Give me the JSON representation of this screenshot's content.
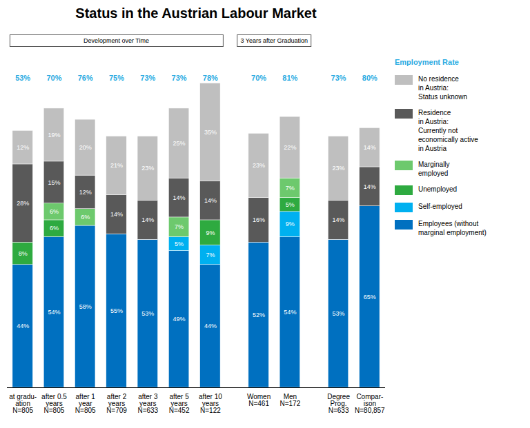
{
  "chart_data": {
    "type": "bar",
    "stacked": true,
    "title": "Status in the Austrian Labour Market",
    "categories": [
      "at gradu-\nation\nN=805",
      "after 0.5\nyears\nN=805",
      "after 1\nyear\nN=805",
      "after 2\nyears\nN=709",
      "after 3\nyears\nN=633",
      "after 5\nyears\nN=452",
      "after 10\nyears\nN=122",
      "Women\nN=461",
      "Men\nN=172",
      "Degree\nProg.\nN=633",
      "Compar-\nison\nN=80,857"
    ],
    "series": [
      {
        "name": "Employees (without\nmarginal employment)",
        "color": "#0070C0",
        "values": [
          44,
          54,
          58,
          55,
          53,
          49,
          44,
          52,
          54,
          53,
          65
        ],
        "value_labels": [
          "44%",
          "54%",
          "58%",
          "55%",
          "53%",
          "49%",
          "44%",
          "52%",
          "54%",
          "53%",
          "65%"
        ]
      },
      {
        "name": "Self-employed",
        "color": "#00B0F0",
        "values": [
          0,
          0,
          0,
          0,
          0,
          5,
          7,
          0,
          9,
          0,
          0
        ],
        "value_labels": [
          null,
          null,
          null,
          null,
          null,
          "5%",
          "7%",
          null,
          "9%",
          null,
          null
        ]
      },
      {
        "name": "Unemployed",
        "color": "#2EAA40",
        "values": [
          8,
          6,
          0,
          0,
          0,
          0,
          9,
          0,
          5,
          0,
          0
        ],
        "value_labels": [
          "8%",
          "6%",
          null,
          null,
          null,
          null,
          "9%",
          null,
          "5%",
          null,
          null
        ]
      },
      {
        "name": "Marginally\nemployed",
        "color": "#6DC96D",
        "values": [
          0,
          6,
          6,
          0,
          0,
          7,
          0,
          0,
          7,
          0,
          0
        ],
        "value_labels": [
          null,
          "6%",
          "6%",
          null,
          null,
          "7%",
          null,
          null,
          "7%",
          null,
          null
        ]
      },
      {
        "name": "Residence\nin Austria:\nCurrently not\neconomically active\nin Austria",
        "color": "#595959",
        "values": [
          28,
          15,
          12,
          14,
          14,
          14,
          14,
          16,
          0,
          14,
          14
        ],
        "value_labels": [
          "28%",
          "15%",
          "12%",
          "14%",
          "14%",
          "14%",
          "14%",
          "16%",
          null,
          "14%",
          "14%"
        ]
      },
      {
        "name": "No residence\nin Austria:\nStatus unknown",
        "color": "#BFBFBF",
        "values": [
          12,
          19,
          20,
          21,
          23,
          25,
          35,
          23,
          22,
          23,
          14
        ],
        "value_labels": [
          "12%",
          "19%",
          "20%",
          "21%",
          "23%",
          "25%",
          "35%",
          "23%",
          "22%",
          "23%",
          "14%"
        ]
      }
    ],
    "data_labels": true,
    "ylim": [
      0,
      118
    ],
    "tick_labels": "x",
    "legend": "right",
    "employment_rate": {
      "label": "Employment Rate",
      "color": "#29ABE2",
      "values": [
        53,
        70,
        76,
        75,
        73,
        73,
        78,
        70,
        81,
        73,
        80
      ],
      "value_labels": [
        "53%",
        "70%",
        "76%",
        "75%",
        "73%",
        "73%",
        "78%",
        "70%",
        "81%",
        "73%",
        "80%"
      ]
    },
    "groups": [
      {
        "label": "Development over Time",
        "categories": [
          "at gradu-\nation\nN=805",
          "after 0.5\nyears\nN=805",
          "after 1\nyear\nN=805",
          "after 2\nyears\nN=709",
          "after 3\nyears\nN=633",
          "after 5\nyears\nN=452",
          "after 10\nyears\nN=122"
        ]
      },
      {
        "label": "3 Years after Graduation",
        "categories": [
          "Women\nN=461",
          "Men\nN=172"
        ]
      }
    ]
  }
}
